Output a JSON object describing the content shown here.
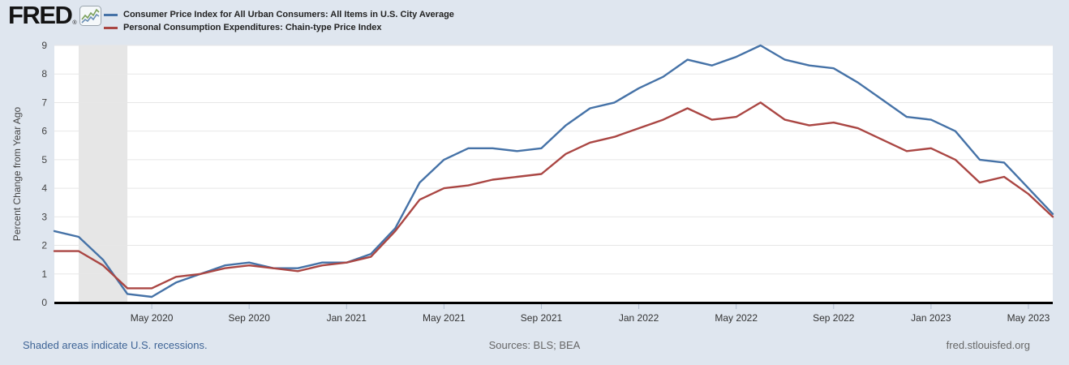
{
  "header": {
    "logo_text": "FRED",
    "registered_mark": "®",
    "legend": [
      {
        "label": "Consumer Price Index for All Urban Consumers: All Items in U.S. City Average",
        "color": "#4572a7"
      },
      {
        "label": "Personal Consumption Expenditures: Chain-type Price Index",
        "color": "#aa4643"
      }
    ]
  },
  "chart_data": {
    "type": "line",
    "title": "",
    "ylabel": "Percent Change from Year Ago",
    "xlabel": "",
    "ylim": [
      0,
      9
    ],
    "y_ticks": [
      0,
      1,
      2,
      3,
      4,
      5,
      6,
      7,
      8,
      9
    ],
    "grid": true,
    "legend_position": "top-left",
    "plot_bg": "#ffffff",
    "gridline_color": "#e7e7e7",
    "baseline_color": "#000000",
    "recession_color": "#e6e6e6",
    "recession_bands": [
      {
        "start": "2020-02",
        "end": "2020-04"
      }
    ],
    "x": [
      "2020-01",
      "2020-02",
      "2020-03",
      "2020-04",
      "2020-05",
      "2020-06",
      "2020-07",
      "2020-08",
      "2020-09",
      "2020-10",
      "2020-11",
      "2020-12",
      "2021-01",
      "2021-02",
      "2021-03",
      "2021-04",
      "2021-05",
      "2021-06",
      "2021-07",
      "2021-08",
      "2021-09",
      "2021-10",
      "2021-11",
      "2021-12",
      "2022-01",
      "2022-02",
      "2022-03",
      "2022-04",
      "2022-05",
      "2022-06",
      "2022-07",
      "2022-08",
      "2022-09",
      "2022-10",
      "2022-11",
      "2022-12",
      "2023-01",
      "2023-02",
      "2023-03",
      "2023-04",
      "2023-05",
      "2023-06"
    ],
    "x_ticks": [
      {
        "month": "2020-05",
        "label": "May 2020"
      },
      {
        "month": "2020-09",
        "label": "Sep 2020"
      },
      {
        "month": "2021-01",
        "label": "Jan 2021"
      },
      {
        "month": "2021-05",
        "label": "May 2021"
      },
      {
        "month": "2021-09",
        "label": "Sep 2021"
      },
      {
        "month": "2022-01",
        "label": "Jan 2022"
      },
      {
        "month": "2022-05",
        "label": "May 2022"
      },
      {
        "month": "2022-09",
        "label": "Sep 2022"
      },
      {
        "month": "2023-01",
        "label": "Jan 2023"
      },
      {
        "month": "2023-05",
        "label": "May 2023"
      }
    ],
    "series": [
      {
        "name": "Consumer Price Index for All Urban Consumers: All Items in U.S. City Average",
        "color": "#4572a7",
        "values": [
          2.5,
          2.3,
          1.5,
          0.3,
          0.2,
          0.7,
          1.0,
          1.3,
          1.4,
          1.2,
          1.2,
          1.4,
          1.4,
          1.7,
          2.6,
          4.2,
          5.0,
          5.4,
          5.4,
          5.3,
          5.4,
          6.2,
          6.8,
          7.0,
          7.5,
          7.9,
          8.5,
          8.3,
          8.6,
          9.0,
          8.5,
          8.3,
          8.2,
          7.7,
          7.1,
          6.5,
          6.4,
          6.0,
          5.0,
          4.9,
          4.0,
          3.1
        ]
      },
      {
        "name": "Personal Consumption Expenditures: Chain-type Price Index",
        "color": "#aa4643",
        "values": [
          1.8,
          1.8,
          1.3,
          0.5,
          0.5,
          0.9,
          1.0,
          1.2,
          1.3,
          1.2,
          1.1,
          1.3,
          1.4,
          1.6,
          2.5,
          3.6,
          4.0,
          4.1,
          4.3,
          4.4,
          4.5,
          5.2,
          5.6,
          5.8,
          6.1,
          6.4,
          6.8,
          6.4,
          6.5,
          7.0,
          6.4,
          6.2,
          6.3,
          6.1,
          5.7,
          5.3,
          5.4,
          5.0,
          4.2,
          4.4,
          3.8,
          3.0
        ]
      }
    ]
  },
  "footer": {
    "recession_note": "Shaded areas indicate U.S. recessions.",
    "sources": "Sources: BLS; BEA",
    "site": "fred.stlouisfed.org"
  },
  "colors": {
    "page_bg": "#dfe6ef",
    "link_blue": "#3e6496",
    "muted_gray": "#666666",
    "axis_text": "#444444",
    "tick_text": "#333333"
  }
}
